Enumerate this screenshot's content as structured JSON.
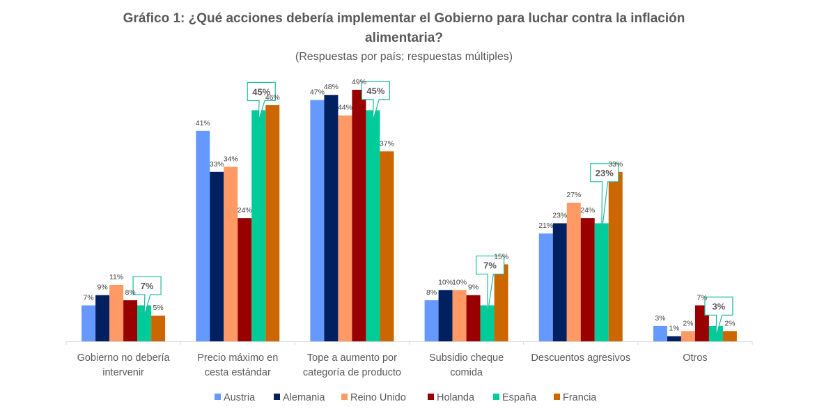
{
  "chart_data": {
    "type": "bar",
    "title_line1": "Gráfico 1: ¿Qué acciones debería implementar el Gobierno para luchar contra la inflación",
    "title_line2": "alimentaria?",
    "subtitle": "(Respuestas por país; respuestas múltiples)",
    "xlabel": "",
    "ylabel": "",
    "ylim": [
      0,
      50
    ],
    "grid": false,
    "legend_position": "bottom",
    "value_suffix": "%",
    "categories": [
      [
        "Gobierno no debería",
        "intervenir"
      ],
      [
        "Precio máximo en",
        "cesta estándar"
      ],
      [
        "Tope a aumento por",
        "categoría de producto"
      ],
      [
        "Subsidio cheque",
        "comida"
      ],
      [
        "Descuentos agresivos"
      ],
      [
        "Otros"
      ]
    ],
    "series": [
      {
        "name": "Austria",
        "color": "#6699FF",
        "values": [
          7,
          41,
          47,
          8,
          21,
          3
        ]
      },
      {
        "name": "Alemania",
        "color": "#002060",
        "values": [
          9,
          33,
          48,
          10,
          23,
          1
        ]
      },
      {
        "name": "Reino Unido",
        "color": "#FF9966",
        "values": [
          11,
          34,
          44,
          10,
          27,
          2
        ]
      },
      {
        "name": "Holanda",
        "color": "#990000",
        "values": [
          8,
          24,
          49,
          9,
          24,
          7
        ]
      },
      {
        "name": "España",
        "color": "#00CC99",
        "values": [
          7,
          45,
          45,
          7,
          23,
          3
        ],
        "highlighted": true,
        "callout_border": "#1ABC9C"
      },
      {
        "name": "Francia",
        "color": "#CC6600",
        "values": [
          5,
          46,
          37,
          15,
          33,
          2
        ]
      }
    ]
  }
}
